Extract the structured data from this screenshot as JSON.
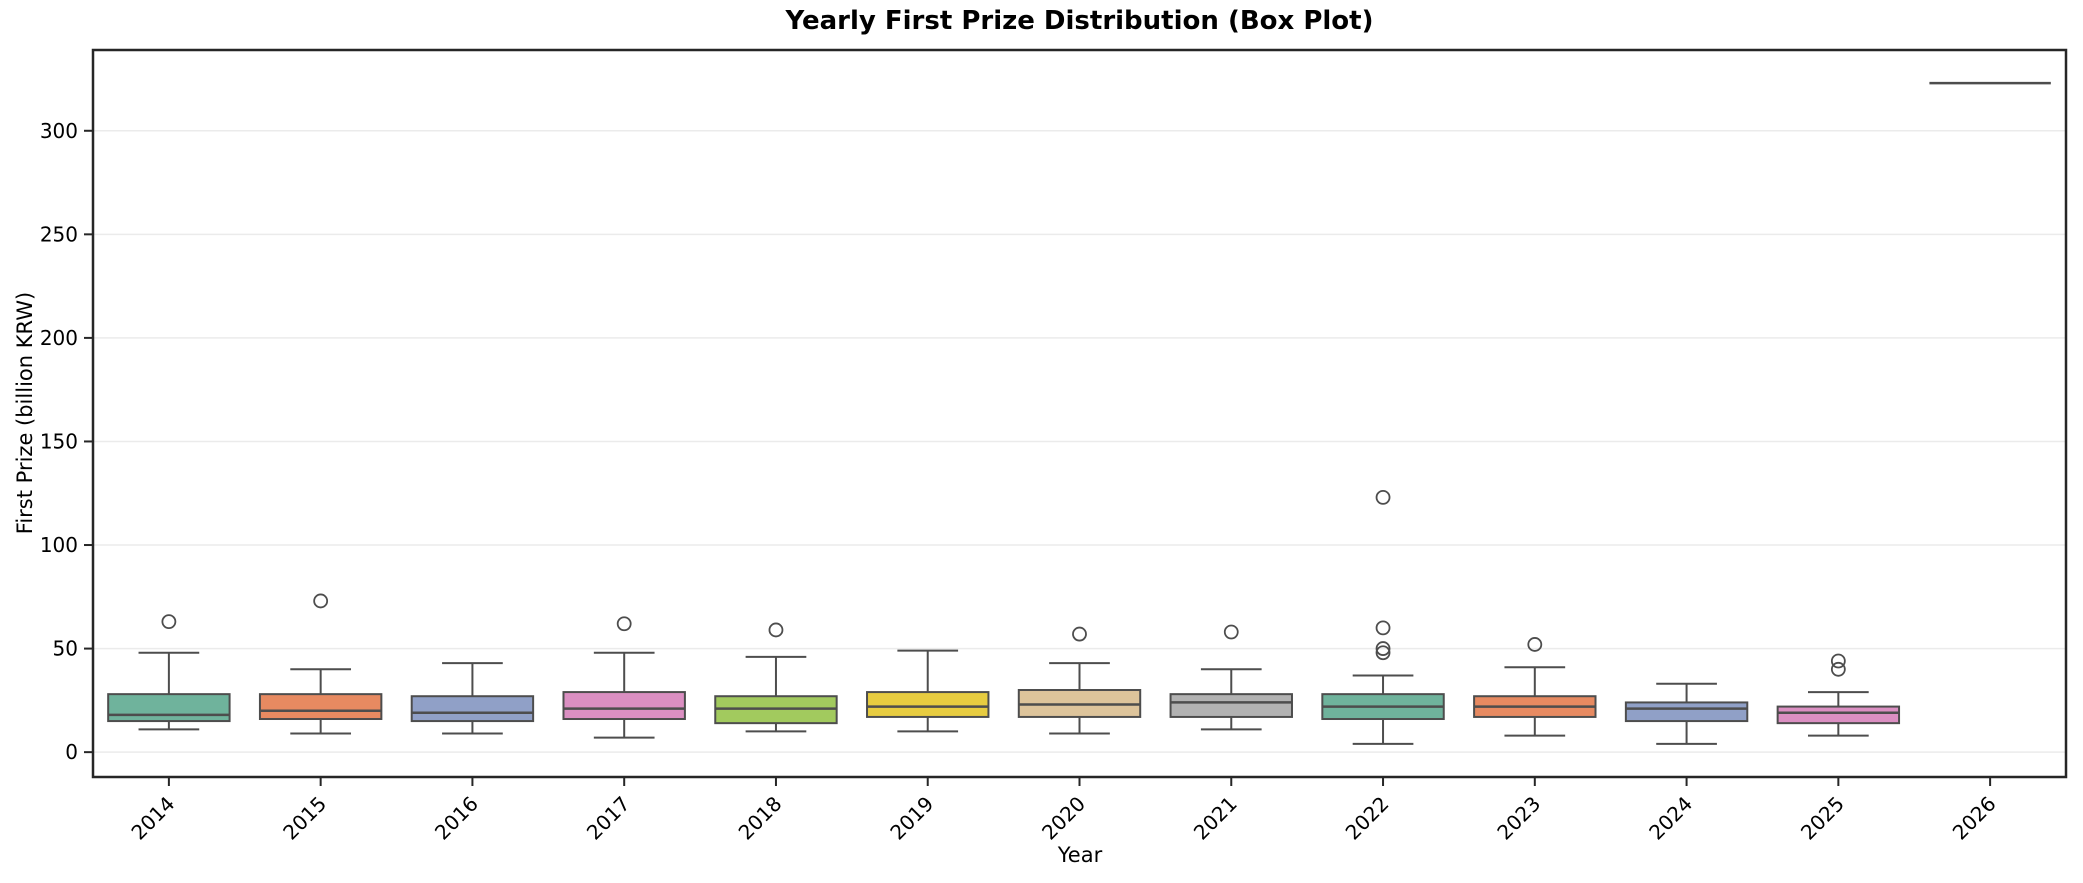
{
  "chart_data": {
    "type": "box",
    "title": "Yearly First Prize Distribution (Box Plot)",
    "xlabel": "Year",
    "ylabel": "First Prize (billion KRW)",
    "categories": [
      "2014",
      "2015",
      "2016",
      "2017",
      "2018",
      "2019",
      "2020",
      "2021",
      "2022",
      "2023",
      "2024",
      "2025",
      "2026"
    ],
    "yticks": [
      0,
      50,
      100,
      150,
      200,
      250,
      300
    ],
    "ylim": [
      -12,
      339
    ],
    "grid": "horizontal-light",
    "legend": "none",
    "boxes": [
      {
        "year": "2014",
        "color": "#6fb39c",
        "whislo": 11,
        "q1": 15,
        "med": 18,
        "q3": 28,
        "whishi": 48,
        "fliers": [
          63
        ]
      },
      {
        "year": "2015",
        "color": "#e78a61",
        "whislo": 9,
        "q1": 16,
        "med": 20,
        "q3": 28,
        "whishi": 40,
        "fliers": [
          73
        ]
      },
      {
        "year": "2016",
        "color": "#90a0c7",
        "whislo": 9,
        "q1": 15,
        "med": 19,
        "q3": 27,
        "whishi": 43,
        "fliers": []
      },
      {
        "year": "2017",
        "color": "#db8fc2",
        "whislo": 7,
        "q1": 16,
        "med": 21,
        "q3": 29,
        "whishi": 48,
        "fliers": [
          62
        ]
      },
      {
        "year": "2018",
        "color": "#a2ca5e",
        "whislo": 10,
        "q1": 14,
        "med": 21,
        "q3": 27,
        "whishi": 46,
        "fliers": [
          59
        ]
      },
      {
        "year": "2019",
        "color": "#e7cc40",
        "whislo": 10,
        "q1": 17,
        "med": 22,
        "q3": 29,
        "whishi": 49,
        "fliers": []
      },
      {
        "year": "2020",
        "color": "#ddc49b",
        "whislo": 9,
        "q1": 17,
        "med": 23,
        "q3": 30,
        "whishi": 43,
        "fliers": [
          57
        ]
      },
      {
        "year": "2021",
        "color": "#b2b2b2",
        "whislo": 11,
        "q1": 17,
        "med": 24,
        "q3": 28,
        "whishi": 40,
        "fliers": [
          58
        ]
      },
      {
        "year": "2022",
        "color": "#6fb39c",
        "whislo": 4,
        "q1": 16,
        "med": 22,
        "q3": 28,
        "whishi": 37,
        "fliers": [
          48,
          50,
          60,
          123
        ]
      },
      {
        "year": "2023",
        "color": "#e78a61",
        "whislo": 8,
        "q1": 17,
        "med": 22,
        "q3": 27,
        "whishi": 41,
        "fliers": [
          52
        ]
      },
      {
        "year": "2024",
        "color": "#90a0c7",
        "whislo": 4,
        "q1": 15,
        "med": 21,
        "q3": 24,
        "whishi": 33,
        "fliers": []
      },
      {
        "year": "2025",
        "color": "#db8fc2",
        "whislo": 8,
        "q1": 14,
        "med": 19,
        "q3": 22,
        "whishi": 29,
        "fliers": [
          40,
          44
        ]
      },
      {
        "year": "2026",
        "color": "#a2ca5e",
        "whislo": 323,
        "q1": 323,
        "med": 323,
        "q3": 323,
        "whishi": 323,
        "fliers": []
      }
    ]
  },
  "style": {
    "box_edge_color": "#4d4d4d",
    "whisker_color": "#4d4d4d",
    "flier_edge_color": "#4d4d4d",
    "grid_color": "#ebebeb",
    "axis_color": "#262626",
    "background": "#ffffff"
  }
}
